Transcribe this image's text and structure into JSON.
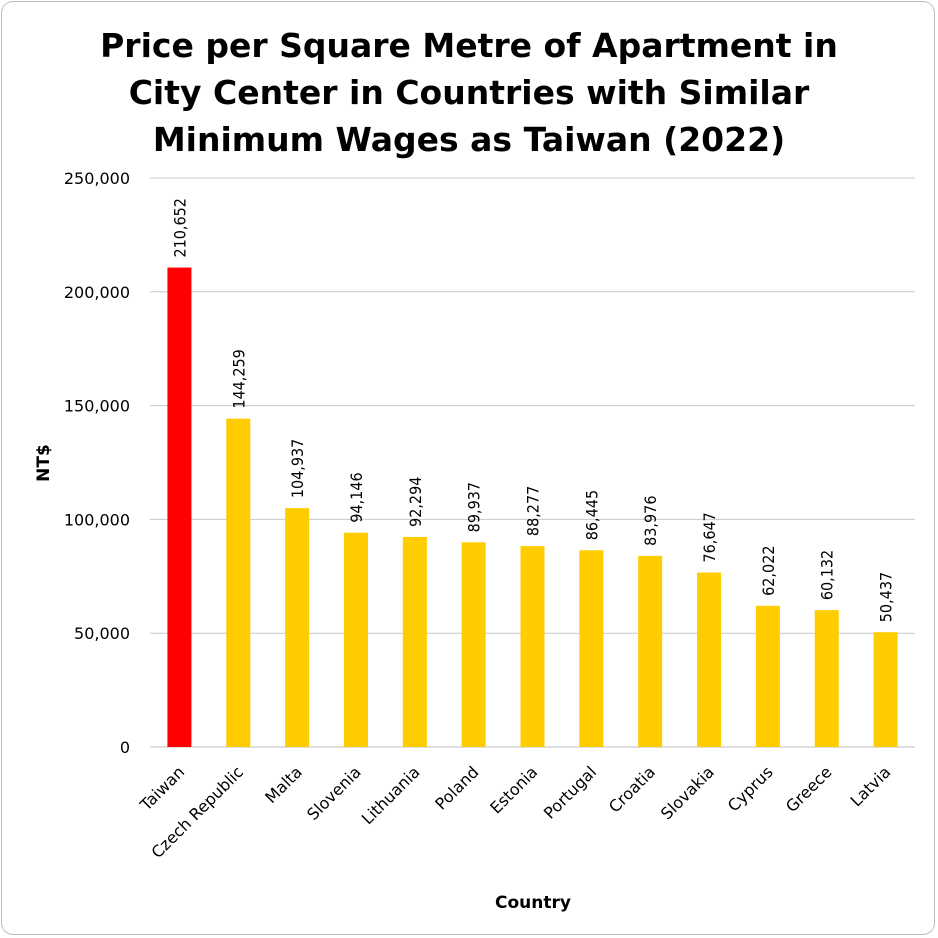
{
  "chart_data": {
    "type": "bar",
    "title": "Price per Square Metre of Apartment in City Center in Countries with Similar Minimum Wages as Taiwan (2022)",
    "xlabel": "Country",
    "ylabel": "NT$",
    "ylim": [
      0,
      250000
    ],
    "yticks": [
      0,
      50000,
      100000,
      150000,
      200000,
      250000
    ],
    "ytick_labels": [
      "0",
      "50,000",
      "100,000",
      "150,000",
      "200,000",
      "250,000"
    ],
    "grid": true,
    "legend": "none",
    "categories": [
      "Taiwan",
      "Czech Republic",
      "Malta",
      "Slovenia",
      "Lithuania",
      "Poland",
      "Estonia",
      "Portugal",
      "Croatia",
      "Slovakia",
      "Cyprus",
      "Greece",
      "Latvia"
    ],
    "values": [
      210652,
      144259,
      104937,
      94146,
      92294,
      89937,
      88277,
      86445,
      83976,
      76647,
      62022,
      60132,
      50437
    ],
    "value_labels": [
      "210,652",
      "144,259",
      "104,937",
      "94,146",
      "92,294",
      "89,937",
      "88,277",
      "86,445",
      "83,976",
      "76,647",
      "62,022",
      "60,132",
      "50,437"
    ],
    "colors": {
      "highlight": "#ff0000",
      "default": "#ffcc00",
      "grid": "#c8c8c8"
    },
    "highlight_category": "Taiwan"
  }
}
